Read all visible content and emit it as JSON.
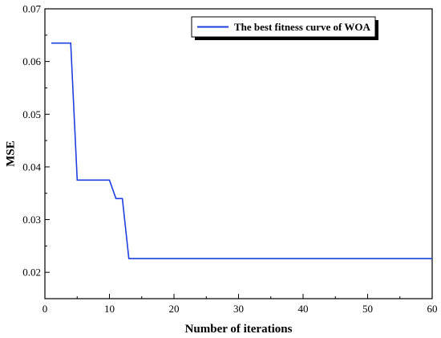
{
  "chart_data": {
    "type": "line",
    "title": "",
    "xlabel": "Number of iterations",
    "ylabel": "MSE",
    "xlim": [
      0,
      60
    ],
    "ylim": [
      0.015,
      0.07
    ],
    "x_ticks": [
      0,
      10,
      20,
      30,
      40,
      50,
      60
    ],
    "x_tick_labels": [
      "0",
      "10",
      "20",
      "30",
      "40",
      "50",
      "60"
    ],
    "y_ticks": [
      0.02,
      0.03,
      0.04,
      0.05,
      0.06,
      0.07
    ],
    "y_tick_labels": [
      "0.02",
      "0.03",
      "0.04",
      "0.05",
      "0.06",
      "0.07"
    ],
    "grid": false,
    "legend_position": "top-right",
    "series": [
      {
        "name": "The best fitness curve of WOA",
        "color": "#1f3fe0",
        "x": [
          1,
          4,
          5,
          10,
          11,
          12,
          13,
          60
        ],
        "y": [
          0.0635,
          0.0635,
          0.0375,
          0.0375,
          0.034,
          0.034,
          0.0226,
          0.0226
        ]
      }
    ]
  }
}
